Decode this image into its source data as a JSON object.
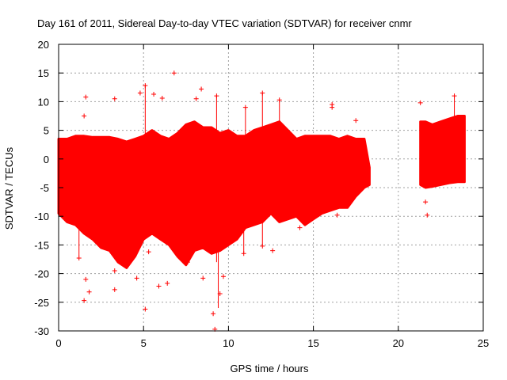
{
  "chart_data": {
    "type": "scatter",
    "title": "Day 161 of 2011, Sidereal Day-to-day VTEC variation (SDTVAR) for receiver cnmr",
    "xlabel": "GPS time / hours",
    "ylabel": "SDTVAR / TECUs",
    "xlim": [
      0,
      25
    ],
    "ylim": [
      -30,
      20
    ],
    "xticks": [
      0,
      5,
      10,
      15,
      20,
      25
    ],
    "yticks": [
      -30,
      -25,
      -20,
      -15,
      -10,
      -5,
      0,
      5,
      10,
      15,
      20
    ],
    "grid": true,
    "marker": "+",
    "color": "#ff0000",
    "series": [
      {
        "name": "SDTVAR",
        "data_ranges": [
          {
            "x_start": 0.0,
            "x_end": 18.3,
            "comment": "dense band"
          },
          {
            "x_start": 21.3,
            "x_end": 23.9,
            "comment": "dense band after gap"
          }
        ],
        "envelope": {
          "x": [
            0.0,
            0.5,
            1.0,
            1.5,
            2.0,
            2.5,
            3.0,
            3.5,
            4.0,
            4.5,
            5.0,
            5.5,
            6.0,
            6.5,
            7.0,
            7.5,
            8.0,
            8.5,
            9.0,
            9.5,
            10.0,
            10.5,
            11.0,
            11.5,
            12.0,
            12.5,
            13.0,
            13.5,
            14.0,
            14.5,
            15.0,
            15.5,
            16.0,
            16.5,
            17.0,
            17.5,
            18.0,
            18.3
          ],
          "upper": [
            3.5,
            3.5,
            4.0,
            4.0,
            3.8,
            3.8,
            3.8,
            3.5,
            3.0,
            3.5,
            4.0,
            5.0,
            4.0,
            3.5,
            4.5,
            6.0,
            6.5,
            5.5,
            5.5,
            4.5,
            5.0,
            4.0,
            4.0,
            5.0,
            5.5,
            6.0,
            6.5,
            5.0,
            3.5,
            4.0,
            4.0,
            4.0,
            4.0,
            3.5,
            4.0,
            3.5,
            3.5,
            -1.5
          ],
          "lower": [
            -9.5,
            -11.0,
            -11.5,
            -13.0,
            -14.0,
            -15.5,
            -16.0,
            -18.0,
            -19.0,
            -17.0,
            -14.0,
            -13.0,
            -14.0,
            -15.0,
            -17.0,
            -18.5,
            -16.0,
            -15.5,
            -16.5,
            -16.0,
            -15.0,
            -14.0,
            -12.0,
            -11.5,
            -11.0,
            -9.5,
            -11.0,
            -10.5,
            -10.0,
            -11.5,
            -10.5,
            -9.5,
            -9.0,
            -8.5,
            -8.5,
            -6.5,
            -5.0,
            -4.5
          ]
        },
        "envelope2": {
          "x": [
            21.3,
            21.6,
            22.0,
            22.5,
            23.0,
            23.5,
            23.9
          ],
          "upper": [
            6.5,
            6.5,
            6.0,
            6.5,
            7.0,
            7.5,
            7.5
          ],
          "lower": [
            -4.5,
            -5.0,
            -4.8,
            -4.5,
            -4.2,
            -4.0,
            -4.0
          ]
        },
        "outliers": [
          {
            "x": 1.6,
            "y": 10.8
          },
          {
            "x": 1.5,
            "y": 7.5
          },
          {
            "x": 3.3,
            "y": 10.5
          },
          {
            "x": 4.8,
            "y": 11.5
          },
          {
            "x": 5.1,
            "y": 12.8
          },
          {
            "x": 5.6,
            "y": 11.3
          },
          {
            "x": 6.1,
            "y": 10.6
          },
          {
            "x": 6.8,
            "y": 15.0
          },
          {
            "x": 8.1,
            "y": 10.5
          },
          {
            "x": 8.4,
            "y": 12.2
          },
          {
            "x": 9.3,
            "y": 11.0
          },
          {
            "x": 11.0,
            "y": 9.0
          },
          {
            "x": 12.0,
            "y": 11.5
          },
          {
            "x": 13.0,
            "y": 10.3
          },
          {
            "x": 16.1,
            "y": 9.5
          },
          {
            "x": 16.1,
            "y": 9.0
          },
          {
            "x": 17.5,
            "y": 6.7
          },
          {
            "x": 21.3,
            "y": 9.8
          },
          {
            "x": 23.3,
            "y": 11.0
          },
          {
            "x": 1.2,
            "y": -17.3
          },
          {
            "x": 1.6,
            "y": -21.0
          },
          {
            "x": 1.8,
            "y": -23.2
          },
          {
            "x": 1.5,
            "y": -24.7
          },
          {
            "x": 3.3,
            "y": -22.8
          },
          {
            "x": 3.3,
            "y": -19.5
          },
          {
            "x": 4.6,
            "y": -20.8
          },
          {
            "x": 5.1,
            "y": -26.2
          },
          {
            "x": 5.3,
            "y": -16.2
          },
          {
            "x": 5.9,
            "y": -22.2
          },
          {
            "x": 6.4,
            "y": -21.7
          },
          {
            "x": 7.6,
            "y": -18.0
          },
          {
            "x": 8.5,
            "y": -20.8
          },
          {
            "x": 9.1,
            "y": -27.0
          },
          {
            "x": 9.2,
            "y": -29.7
          },
          {
            "x": 9.5,
            "y": -23.5
          },
          {
            "x": 9.7,
            "y": -20.5
          },
          {
            "x": 10.9,
            "y": -16.5
          },
          {
            "x": 12.0,
            "y": -15.2
          },
          {
            "x": 12.6,
            "y": -16.0
          },
          {
            "x": 14.2,
            "y": -12.0
          },
          {
            "x": 16.4,
            "y": -9.8
          },
          {
            "x": 21.6,
            "y": -7.5
          },
          {
            "x": 21.7,
            "y": -9.8
          }
        ],
        "spikes": [
          {
            "x": 1.2,
            "lo": -17.0,
            "hi": 3.5
          },
          {
            "x": 5.1,
            "lo": 1.0,
            "hi": 12.8
          },
          {
            "x": 7.6,
            "lo": -18.0,
            "hi": -5.0
          },
          {
            "x": 9.3,
            "lo": -18.0,
            "hi": 11.0
          },
          {
            "x": 9.4,
            "lo": -26.0,
            "hi": -12.0
          },
          {
            "x": 11.0,
            "lo": 0.0,
            "hi": 9.0
          },
          {
            "x": 10.9,
            "lo": -16.5,
            "hi": -8.0
          },
          {
            "x": 12.0,
            "lo": -15.0,
            "hi": -8.0
          },
          {
            "x": 12.0,
            "lo": 1.0,
            "hi": 11.5
          },
          {
            "x": 13.0,
            "lo": 1.0,
            "hi": 10.3
          },
          {
            "x": 23.3,
            "lo": 1.0,
            "hi": 11.0
          }
        ]
      }
    ]
  }
}
